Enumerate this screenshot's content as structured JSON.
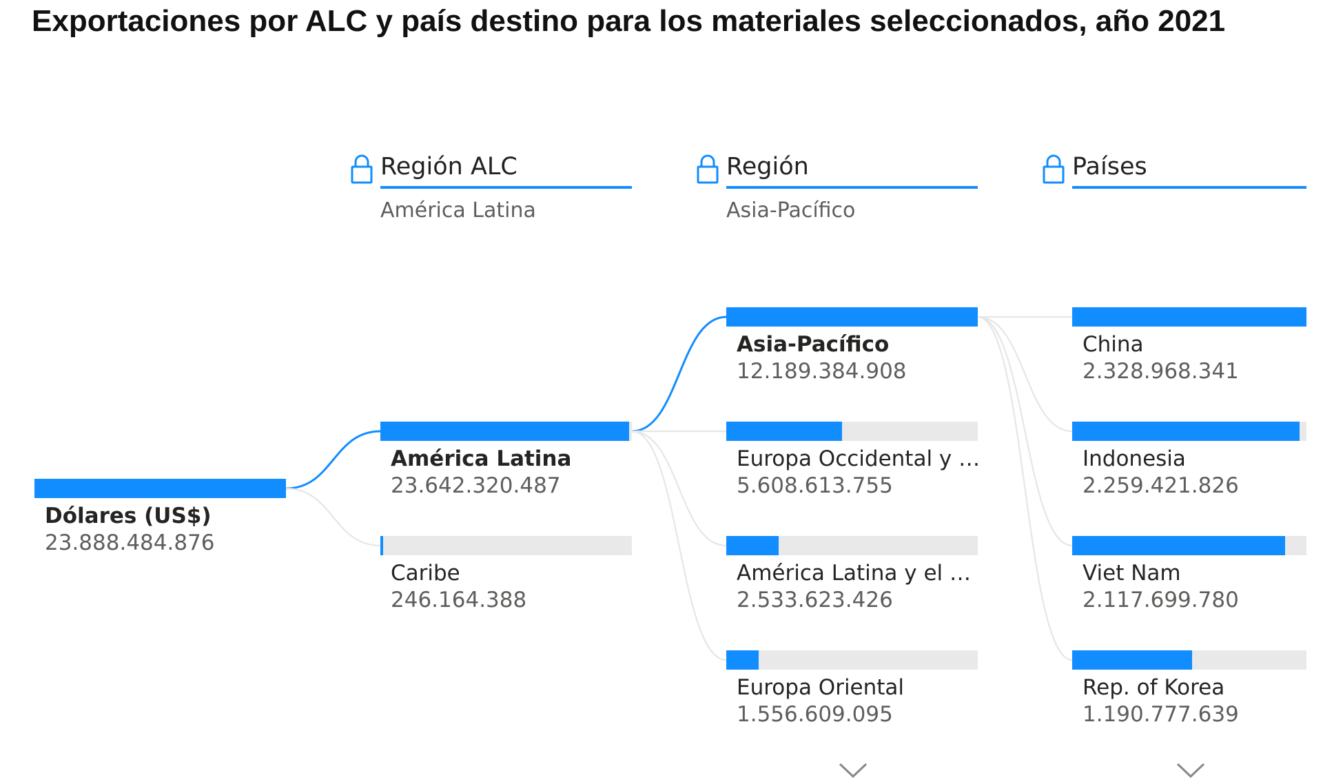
{
  "title": "Exportaciones por ALC y país destino para los materiales seleccionados, año 2021",
  "colors": {
    "accent": "#118dff",
    "track": "#e9e9e9",
    "link_active": "#118dff",
    "link_inactive": "#e6e6e6"
  },
  "levels": [
    {
      "name": "Región ALC",
      "filter": "América Latina",
      "icon": "lock-icon"
    },
    {
      "name": "Región",
      "filter": "Asia-Pacífico",
      "icon": "lock-icon"
    },
    {
      "name": "Países",
      "filter": "",
      "icon": "lock-icon"
    }
  ],
  "chart_data": {
    "type": "decomposition-tree",
    "root": {
      "label": "Dólares (US$)",
      "value": 23888484876,
      "display": "23.888.484.876"
    },
    "columns": [
      {
        "level": "Región ALC",
        "selected": 0,
        "nodes": [
          {
            "label": "América Latina",
            "value": 23642320487,
            "display": "23.642.320.487"
          },
          {
            "label": "Caribe",
            "value": 246164388,
            "display": "246.164.388"
          }
        ]
      },
      {
        "level": "Región",
        "selected": 0,
        "nodes": [
          {
            "label": "Asia-Pacífico",
            "value": 12189384908,
            "display": "12.189.384.908"
          },
          {
            "label": "Europa Occidental y ot...",
            "value": 5608613755,
            "display": "5.608.613.755"
          },
          {
            "label": "América Latina y el Car...",
            "value": 2533623426,
            "display": "2.533.623.426"
          },
          {
            "label": "Europa Oriental",
            "value": 1556609095,
            "display": "1.556.609.095"
          }
        ],
        "has_more": true
      },
      {
        "level": "Países",
        "selected": null,
        "nodes": [
          {
            "label": "China",
            "value": 2328968341,
            "display": "2.328.968.341"
          },
          {
            "label": "Indonesia",
            "value": 2259421826,
            "display": "2.259.421.826"
          },
          {
            "label": "Viet Nam",
            "value": 2117699780,
            "display": "2.117.699.780"
          },
          {
            "label": "Rep. of Korea",
            "value": 1190777639,
            "display": "1.190.777.639"
          }
        ],
        "has_more": true
      }
    ]
  }
}
